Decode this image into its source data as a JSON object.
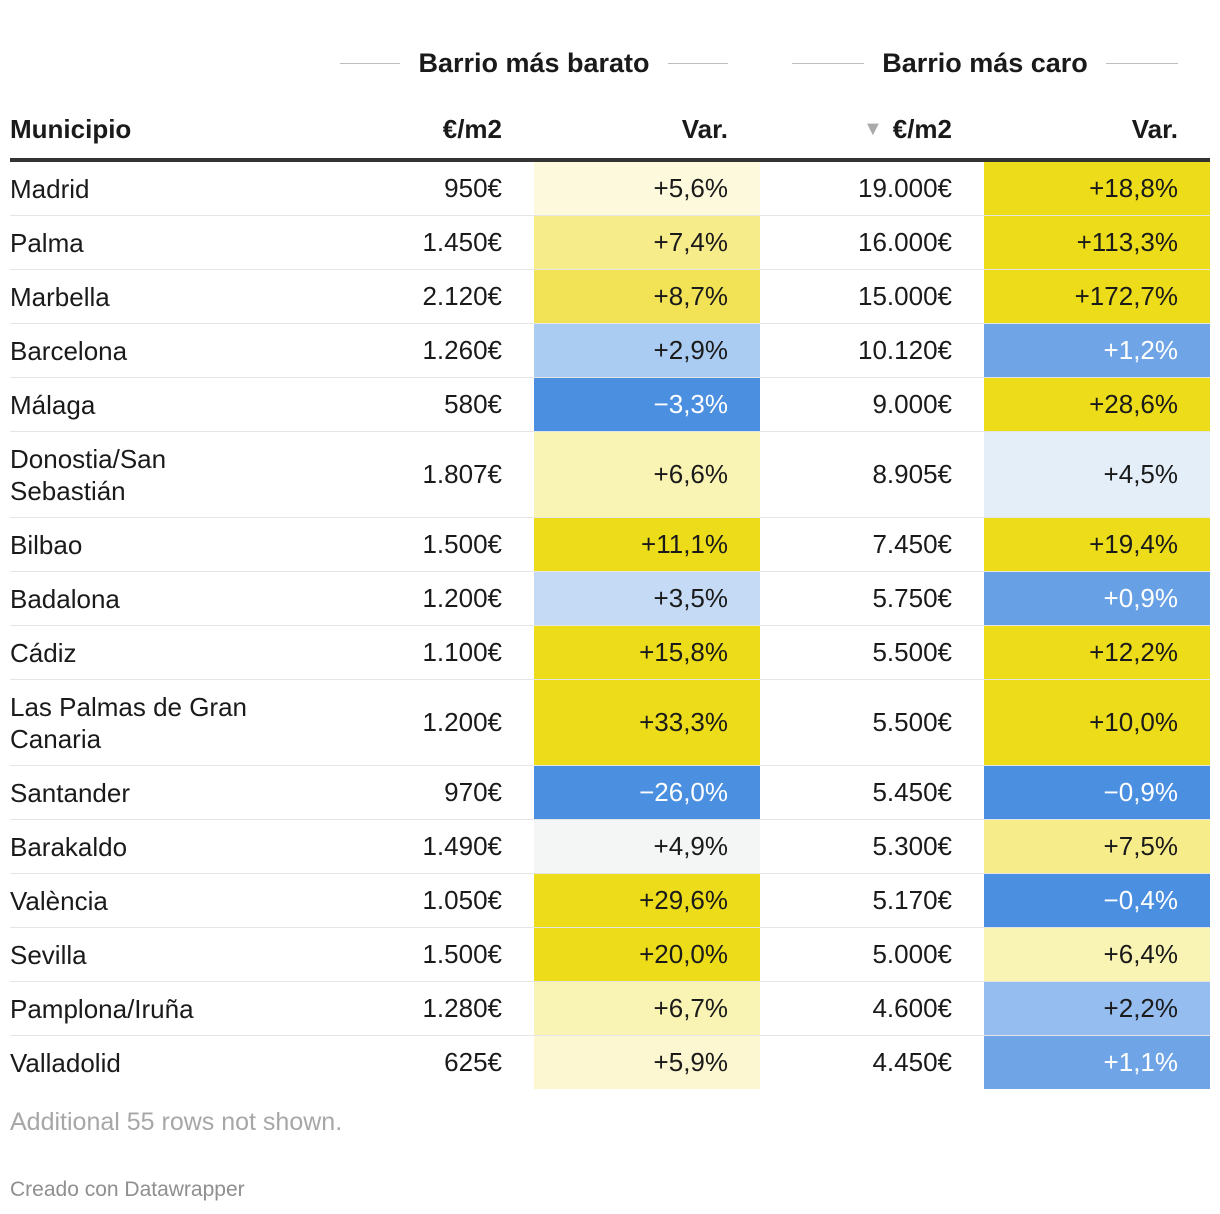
{
  "group_headers": {
    "cheapest": "Barrio más barato",
    "expensive": "Barrio más caro"
  },
  "columns": {
    "municipio": "Municipio",
    "cheap_price": "€/m2",
    "cheap_var": "Var.",
    "sort_icon": "▼",
    "exp_price": "€/m2",
    "exp_var": "Var."
  },
  "colors": {
    "yellow_strong": "#ecdc19",
    "blue_strong": "#4a8fe0",
    "header_rule": "#333333"
  },
  "rows": [
    {
      "municipio": "Madrid",
      "cheap_price": "950€",
      "cheap_var": "+5,6%",
      "cheap_bg": "#fdf9dc",
      "cheap_fg": "#1a1a1a",
      "exp_price": "19.000€",
      "exp_var": "+18,8%",
      "exp_bg": "#ecdc19",
      "exp_fg": "#1a1a1a",
      "tall": false
    },
    {
      "municipio": "Palma",
      "cheap_price": "1.450€",
      "cheap_var": "+7,4%",
      "cheap_bg": "#f6ec8a",
      "cheap_fg": "#1a1a1a",
      "exp_price": "16.000€",
      "exp_var": "+113,3%",
      "exp_bg": "#ecdc19",
      "exp_fg": "#1a1a1a",
      "tall": false
    },
    {
      "municipio": "Marbella",
      "cheap_price": "2.120€",
      "cheap_var": "+8,7%",
      "cheap_bg": "#f2e356",
      "cheap_fg": "#1a1a1a",
      "exp_price": "15.000€",
      "exp_var": "+172,7%",
      "exp_bg": "#ecdc19",
      "exp_fg": "#1a1a1a",
      "tall": false
    },
    {
      "municipio": "Barcelona",
      "cheap_price": "1.260€",
      "cheap_var": "+2,9%",
      "cheap_bg": "#aacbf2",
      "cheap_fg": "#1a1a1a",
      "exp_price": "10.120€",
      "exp_var": "+1,2%",
      "exp_bg": "#6fa5e6",
      "exp_fg": "#ffffff",
      "tall": false
    },
    {
      "municipio": "Málaga",
      "cheap_price": "580€",
      "cheap_var": "−3,3%",
      "cheap_bg": "#4a8fe0",
      "cheap_fg": "#ffffff",
      "exp_price": "9.000€",
      "exp_var": "+28,6%",
      "exp_bg": "#ecdc19",
      "exp_fg": "#1a1a1a",
      "tall": false
    },
    {
      "municipio": "Donostia/San Sebastián",
      "cheap_price": "1.807€",
      "cheap_var": "+6,6%",
      "cheap_bg": "#faf4b4",
      "cheap_fg": "#1a1a1a",
      "exp_price": "8.905€",
      "exp_var": "+4,5%",
      "exp_bg": "#e4eef9",
      "exp_fg": "#1a1a1a",
      "tall": true
    },
    {
      "municipio": "Bilbao",
      "cheap_price": "1.500€",
      "cheap_var": "+11,1%",
      "cheap_bg": "#ecdc19",
      "cheap_fg": "#1a1a1a",
      "exp_price": "7.450€",
      "exp_var": "+19,4%",
      "exp_bg": "#ecdc19",
      "exp_fg": "#1a1a1a",
      "tall": false
    },
    {
      "municipio": "Badalona",
      "cheap_price": "1.200€",
      "cheap_var": "+3,5%",
      "cheap_bg": "#c5daf5",
      "cheap_fg": "#1a1a1a",
      "exp_price": "5.750€",
      "exp_var": "+0,9%",
      "exp_bg": "#68a0e5",
      "exp_fg": "#ffffff",
      "tall": false
    },
    {
      "municipio": "Cádiz",
      "cheap_price": "1.100€",
      "cheap_var": "+15,8%",
      "cheap_bg": "#ecdc19",
      "cheap_fg": "#1a1a1a",
      "exp_price": "5.500€",
      "exp_var": "+12,2%",
      "exp_bg": "#ecdc19",
      "exp_fg": "#1a1a1a",
      "tall": false
    },
    {
      "municipio": "Las Palmas de Gran Canaria",
      "cheap_price": "1.200€",
      "cheap_var": "+33,3%",
      "cheap_bg": "#ecdc19",
      "cheap_fg": "#1a1a1a",
      "exp_price": "5.500€",
      "exp_var": "+10,0%",
      "exp_bg": "#ecdc19",
      "exp_fg": "#1a1a1a",
      "tall": true
    },
    {
      "municipio": "Santander",
      "cheap_price": "970€",
      "cheap_var": "−26,0%",
      "cheap_bg": "#4a8fe0",
      "cheap_fg": "#ffffff",
      "exp_price": "5.450€",
      "exp_var": "−0,9%",
      "exp_bg": "#4a8fe0",
      "exp_fg": "#ffffff",
      "tall": false
    },
    {
      "municipio": "Barakaldo",
      "cheap_price": "1.490€",
      "cheap_var": "+4,9%",
      "cheap_bg": "#f3f6f4",
      "cheap_fg": "#1a1a1a",
      "exp_price": "5.300€",
      "exp_var": "+7,5%",
      "exp_bg": "#f6ec8a",
      "exp_fg": "#1a1a1a",
      "tall": false
    },
    {
      "municipio": "València",
      "cheap_price": "1.050€",
      "cheap_var": "+29,6%",
      "cheap_bg": "#ecdc19",
      "cheap_fg": "#1a1a1a",
      "exp_price": "5.170€",
      "exp_var": "−0,4%",
      "exp_bg": "#4a8fe0",
      "exp_fg": "#ffffff",
      "tall": false
    },
    {
      "municipio": "Sevilla",
      "cheap_price": "1.500€",
      "cheap_var": "+20,0%",
      "cheap_bg": "#ecdc19",
      "cheap_fg": "#1a1a1a",
      "exp_price": "5.000€",
      "exp_var": "+6,4%",
      "exp_bg": "#faf4b4",
      "exp_fg": "#1a1a1a",
      "tall": false
    },
    {
      "municipio": "Pamplona/Iruña",
      "cheap_price": "1.280€",
      "cheap_var": "+6,7%",
      "cheap_bg": "#faf4b4",
      "cheap_fg": "#1a1a1a",
      "exp_price": "4.600€",
      "exp_var": "+2,2%",
      "exp_bg": "#96bdf0",
      "exp_fg": "#1a1a1a",
      "tall": false
    },
    {
      "municipio": "Valladolid",
      "cheap_price": "625€",
      "cheap_var": "+5,9%",
      "cheap_bg": "#fcf7d0",
      "cheap_fg": "#1a1a1a",
      "exp_price": "4.450€",
      "exp_var": "+1,1%",
      "exp_bg": "#6fa5e6",
      "exp_fg": "#ffffff",
      "tall": false
    }
  ],
  "footnote": "Additional 55 rows not shown.",
  "credit": "Creado con Datawrapper"
}
